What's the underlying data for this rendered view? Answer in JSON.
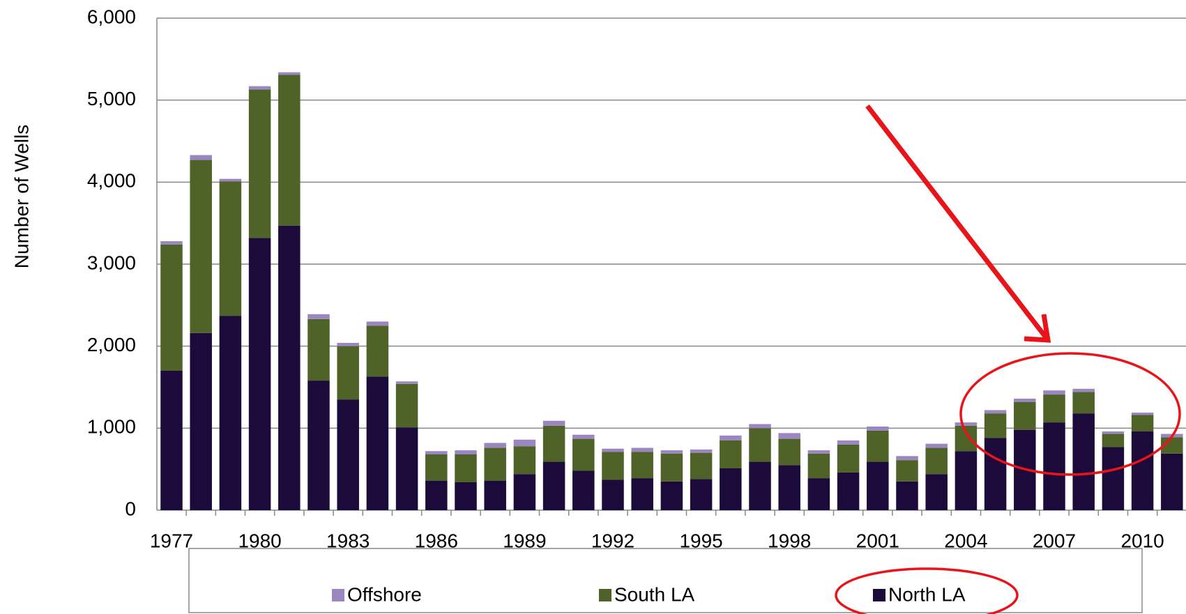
{
  "chart_data": {
    "type": "stacked_bar",
    "y_label": "Number of Wells",
    "categories": [
      "1977",
      null,
      null,
      "1980",
      null,
      null,
      "1983",
      null,
      null,
      "1986",
      null,
      null,
      "1989",
      null,
      null,
      "1992",
      null,
      null,
      "1995",
      null,
      null,
      "1998",
      null,
      null,
      "2001",
      null,
      null,
      "2004",
      null,
      null,
      "2007",
      null,
      null,
      "2010",
      null
    ],
    "series": [
      {
        "name": "Offshore",
        "color": "#9c86c0",
        "values": [
          40,
          60,
          30,
          40,
          30,
          60,
          40,
          50,
          30,
          40,
          50,
          60,
          80,
          60,
          50,
          40,
          50,
          40,
          40,
          60,
          50,
          70,
          40,
          50,
          50,
          50,
          50,
          40,
          40,
          40,
          50,
          40,
          30,
          30,
          40
        ]
      },
      {
        "name": "South LA",
        "color": "#4f6228",
        "values": [
          1540,
          2110,
          1640,
          1810,
          1840,
          750,
          650,
          620,
          530,
          320,
          340,
          400,
          340,
          440,
          390,
          340,
          320,
          340,
          320,
          340,
          410,
          320,
          300,
          340,
          380,
          260,
          320,
          310,
          300,
          340,
          340,
          260,
          160,
          200,
          200
        ]
      },
      {
        "name": "North LA",
        "color": "#1b0a3a",
        "values": [
          1700,
          2160,
          2370,
          3320,
          3470,
          1580,
          1350,
          1630,
          1010,
          360,
          340,
          360,
          440,
          590,
          480,
          370,
          390,
          350,
          380,
          510,
          590,
          550,
          390,
          460,
          590,
          350,
          440,
          720,
          880,
          980,
          1070,
          1180,
          770,
          960,
          690
        ]
      }
    ],
    "ylim": [
      0,
      6000
    ],
    "yticks": [
      0,
      {
        "value": 1000,
        "label": "1,000"
      },
      {
        "value": 2000,
        "label": "2,000"
      },
      {
        "value": 3000,
        "label": "3,000"
      },
      {
        "value": 4000,
        "label": "4,000"
      },
      {
        "value": 5000,
        "label": "5,000"
      },
      {
        "value": 6000,
        "label": "6,000"
      }
    ],
    "grid": true,
    "legend": "bottom"
  }
}
